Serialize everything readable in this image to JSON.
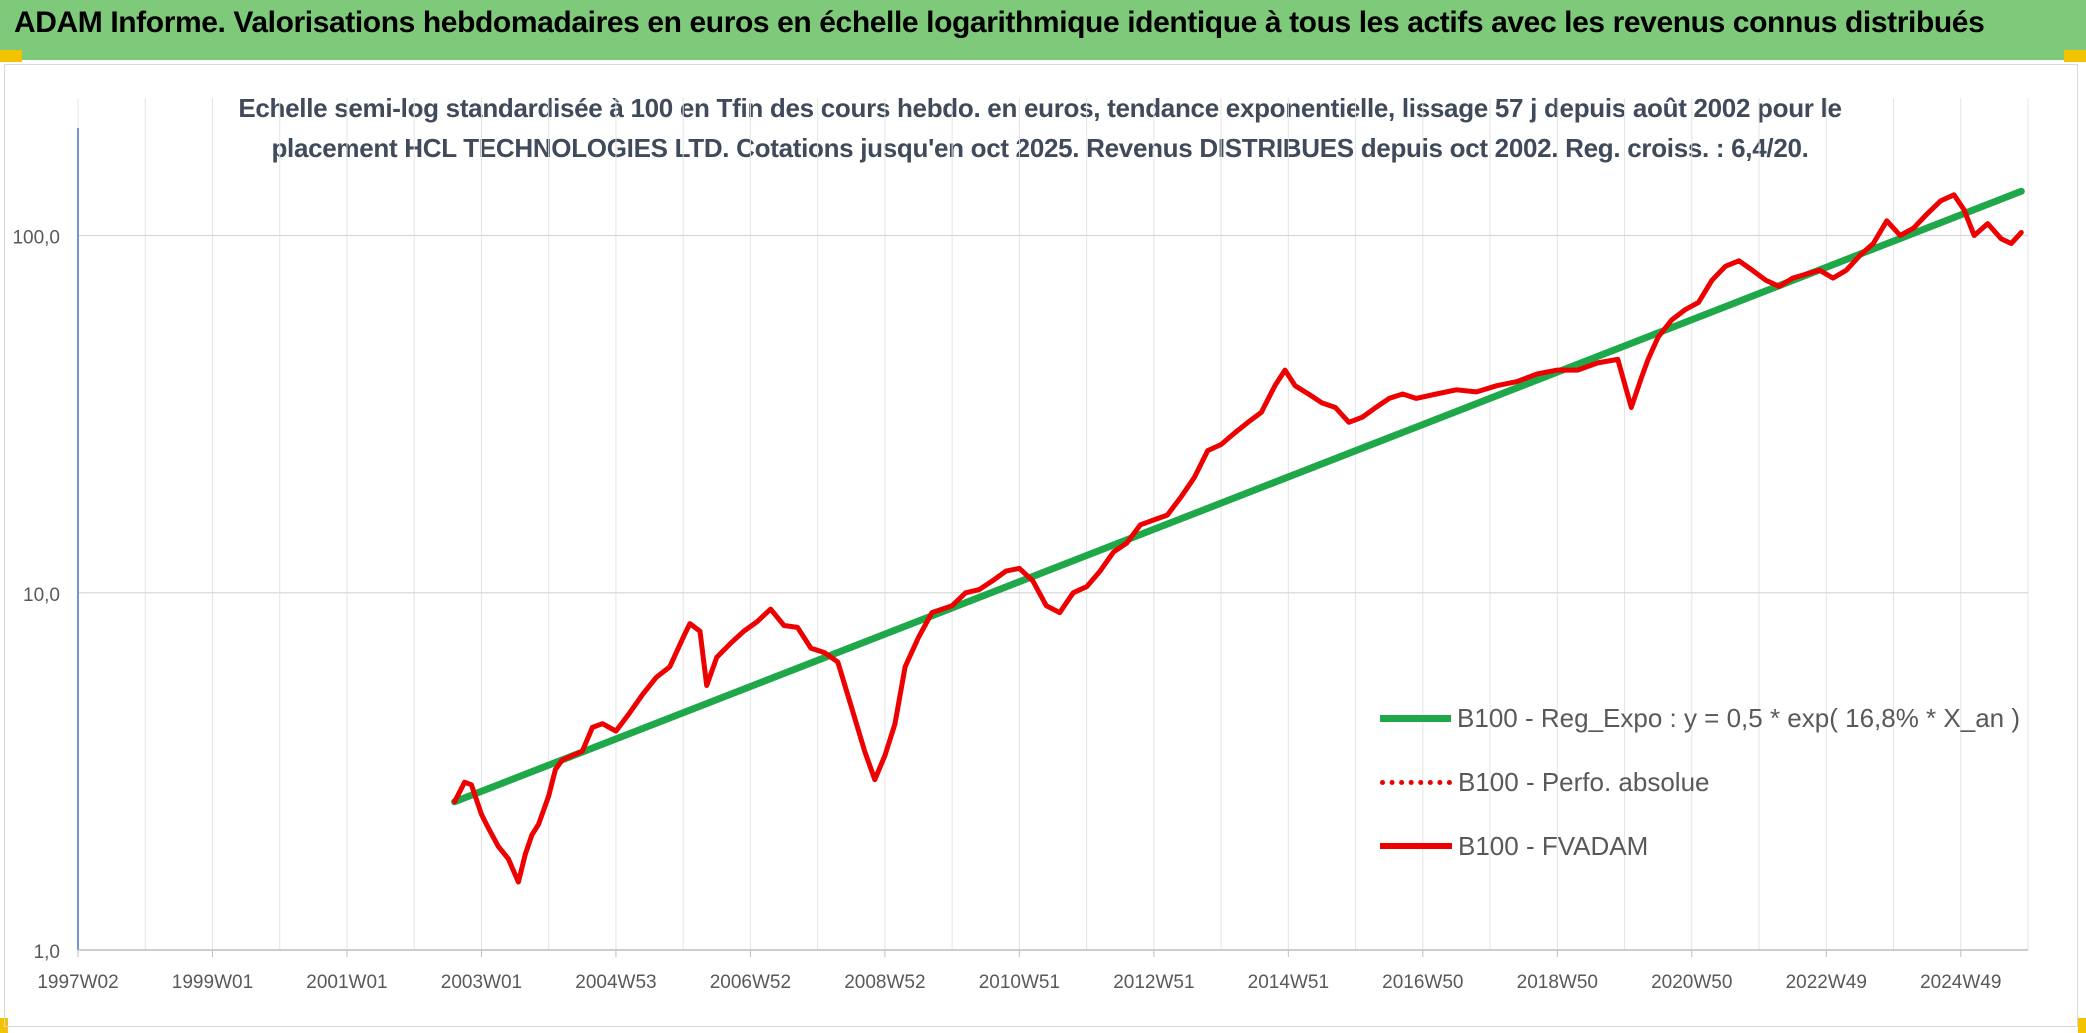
{
  "header": {
    "title": "ADAM Informe. Valorisations hebdomadaires en euros en échelle logarithmique identique à tous les actifs avec les revenus connus distribués"
  },
  "colors": {
    "header_bg": "#7fc97a",
    "trend": "#1fa84a",
    "fvadam": "#ee0000",
    "perfo": "#ee0000",
    "grid": "#d9d9d9",
    "axis": "#4472c4"
  },
  "chart_data": {
    "type": "line",
    "title_line1": "Echelle semi-log standardisée à 100 en Tfin des cours hebdo. en euros, tendance exponentielle, lissage 57 j depuis août 2002 pour le",
    "title_line2": "placement HCL TECHNOLOGIES LTD. Cotations jusqu'en oct 2025. Revenus DISTRIBUES depuis oct 2002. Reg. croiss. : 6,4/20.",
    "y_scale": "log",
    "ylim": [
      1,
      200
    ],
    "xlim": [
      1997.0,
      2026.0
    ],
    "y_ticks": [
      {
        "value": 1,
        "label": "1,0"
      },
      {
        "value": 10,
        "label": "10,0"
      },
      {
        "value": 100,
        "label": "100,0"
      }
    ],
    "x_ticks": [
      {
        "value": 1997.0,
        "label": "1997W02"
      },
      {
        "value": 1999.0,
        "label": "1999W01"
      },
      {
        "value": 2001.0,
        "label": "2001W01"
      },
      {
        "value": 2003.0,
        "label": "2003W01"
      },
      {
        "value": 2005.0,
        "label": "2004W53"
      },
      {
        "value": 2007.0,
        "label": "2006W52"
      },
      {
        "value": 2009.0,
        "label": "2008W52"
      },
      {
        "value": 2011.0,
        "label": "2010W51"
      },
      {
        "value": 2013.0,
        "label": "2012W51"
      },
      {
        "value": 2015.0,
        "label": "2014W51"
      },
      {
        "value": 2017.0,
        "label": "2016W50"
      },
      {
        "value": 2019.0,
        "label": "2018W50"
      },
      {
        "value": 2021.0,
        "label": "2020W50"
      },
      {
        "value": 2023.0,
        "label": "2022W49"
      },
      {
        "value": 2025.0,
        "label": "2024W49"
      }
    ],
    "grid": "vertical and horizontal",
    "legend_position": "bottom-right",
    "series": [
      {
        "name": "B100 - Reg_Expo : y = 0,5 * exp( 16,8% *  X_an )",
        "style": "solid",
        "color": "#1fa84a",
        "x": [
          2002.6,
          2025.9
        ],
        "y": [
          2.6,
          133
        ]
      },
      {
        "name": "B100 - Perfo. absolue",
        "style": "dotted",
        "color": "#ee0000",
        "x": [],
        "y": []
      },
      {
        "name": "B100 - FVADAM",
        "style": "solid",
        "color": "#ee0000",
        "x": [
          2002.6,
          2002.75,
          2002.85,
          2003.0,
          2003.1,
          2003.25,
          2003.4,
          2003.55,
          2003.65,
          2003.75,
          2003.85,
          2004.0,
          2004.1,
          2004.2,
          2004.35,
          2004.5,
          2004.65,
          2004.8,
          2005.0,
          2005.2,
          2005.4,
          2005.6,
          2005.8,
          2006.0,
          2006.1,
          2006.25,
          2006.35,
          2006.5,
          2006.7,
          2006.9,
          2007.1,
          2007.3,
          2007.5,
          2007.7,
          2007.9,
          2008.1,
          2008.3,
          2008.5,
          2008.7,
          2008.85,
          2009.0,
          2009.15,
          2009.3,
          2009.5,
          2009.7,
          2010.0,
          2010.2,
          2010.4,
          2010.6,
          2010.8,
          2011.0,
          2011.2,
          2011.4,
          2011.6,
          2011.8,
          2012.0,
          2012.2,
          2012.4,
          2012.6,
          2012.8,
          2013.0,
          2013.2,
          2013.4,
          2013.6,
          2013.8,
          2014.0,
          2014.2,
          2014.4,
          2014.6,
          2014.8,
          2014.95,
          2015.1,
          2015.3,
          2015.5,
          2015.7,
          2015.9,
          2016.1,
          2016.3,
          2016.5,
          2016.7,
          2016.9,
          2017.2,
          2017.5,
          2017.8,
          2018.1,
          2018.4,
          2018.7,
          2019.0,
          2019.3,
          2019.6,
          2019.9,
          2020.1,
          2020.25,
          2020.35,
          2020.5,
          2020.7,
          2020.9,
          2021.1,
          2021.3,
          2021.5,
          2021.7,
          2021.9,
          2022.1,
          2022.3,
          2022.5,
          2022.7,
          2022.9,
          2023.1,
          2023.3,
          2023.5,
          2023.7,
          2023.9,
          2024.1,
          2024.3,
          2024.5,
          2024.7,
          2024.9,
          2025.05,
          2025.2,
          2025.4,
          2025.6,
          2025.75,
          2025.9
        ],
        "y": [
          2.6,
          2.95,
          2.9,
          2.4,
          2.2,
          1.95,
          1.8,
          1.55,
          1.85,
          2.1,
          2.25,
          2.7,
          3.2,
          3.4,
          3.5,
          3.6,
          4.2,
          4.3,
          4.1,
          4.6,
          5.2,
          5.8,
          6.2,
          7.5,
          8.2,
          7.8,
          5.5,
          6.6,
          7.2,
          7.8,
          8.3,
          9.0,
          8.1,
          8.0,
          7.0,
          6.8,
          6.4,
          4.8,
          3.6,
          3.0,
          3.5,
          4.3,
          6.2,
          7.5,
          8.8,
          9.2,
          10.0,
          10.2,
          10.8,
          11.5,
          11.7,
          10.8,
          9.2,
          8.8,
          10.0,
          10.4,
          11.5,
          13.0,
          13.8,
          15.5,
          16.0,
          16.5,
          18.5,
          21.0,
          25.0,
          26.0,
          28.0,
          30.0,
          32.0,
          38.0,
          42.0,
          38.0,
          36.0,
          34.0,
          33.0,
          30.0,
          31.0,
          33.0,
          35.0,
          36.0,
          35.0,
          36.0,
          37.0,
          36.5,
          38.0,
          39.0,
          41.0,
          42.0,
          42.0,
          44.0,
          45.0,
          33.0,
          40.0,
          45.0,
          52.0,
          58.0,
          62.0,
          65.0,
          75.0,
          82.0,
          85.0,
          80.0,
          75.0,
          72.0,
          76.0,
          78.0,
          80.0,
          76.0,
          80.0,
          88.0,
          95.0,
          110.0,
          100.0,
          105.0,
          115.0,
          125.0,
          130.0,
          118.0,
          100.0,
          108.0,
          98.0,
          95.0,
          102.0
        ]
      }
    ]
  }
}
